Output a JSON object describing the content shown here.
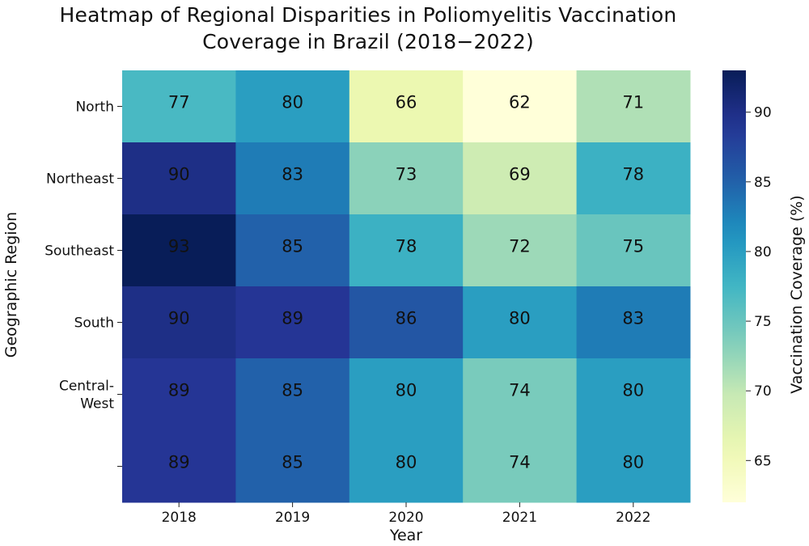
{
  "chart_data": {
    "type": "heatmap",
    "title_lines": [
      "Heatmap of Regional Disparities in Poliomyelitis Vaccination",
      "Coverage in Brazil (2018−2022)"
    ],
    "xlabel": "Year",
    "ylabel": "Geographic Region",
    "x_categories": [
      "2018",
      "2019",
      "2020",
      "2021",
      "2022"
    ],
    "y_categories": [
      "North",
      "Northeast",
      "Southeast",
      "South",
      "Central-\nWest",
      ""
    ],
    "values": [
      [
        77,
        80,
        66,
        62,
        71
      ],
      [
        90,
        83,
        73,
        69,
        78
      ],
      [
        93,
        85,
        78,
        72,
        75
      ],
      [
        90,
        89,
        86,
        80,
        83
      ],
      [
        89,
        85,
        80,
        74,
        80
      ],
      [
        89,
        85,
        80,
        74,
        80
      ]
    ],
    "colorbar": {
      "label": "Vaccination Coverage (%)",
      "range": [
        62,
        93
      ],
      "ticks": [
        65,
        70,
        75,
        80,
        85,
        90
      ],
      "colormap": "YlGnBu"
    }
  }
}
